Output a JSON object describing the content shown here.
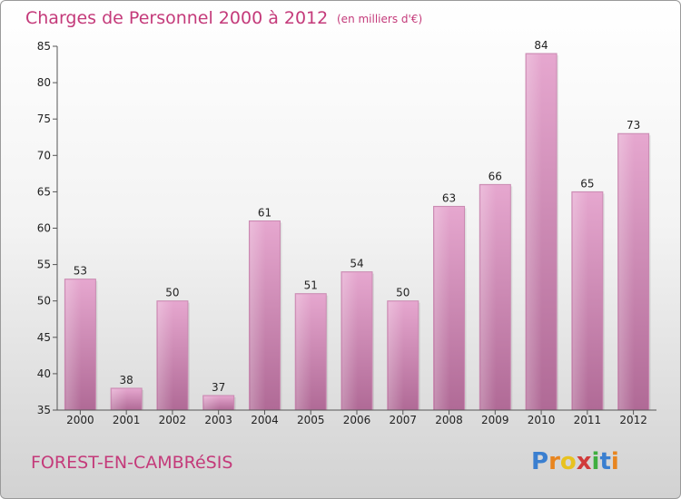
{
  "chart_data": {
    "type": "bar",
    "title": "Charges de Personnel 2000 à 2012",
    "subtitle": "(en milliers d'€)",
    "categories": [
      "2000",
      "2001",
      "2002",
      "2003",
      "2004",
      "2005",
      "2006",
      "2007",
      "2008",
      "2009",
      "2010",
      "2011",
      "2012"
    ],
    "values": [
      53,
      38,
      50,
      37,
      61,
      51,
      54,
      50,
      63,
      66,
      84,
      65,
      73
    ],
    "ylim": [
      35,
      85
    ],
    "yticks": [
      35,
      40,
      45,
      50,
      55,
      60,
      65,
      70,
      75,
      80,
      85
    ],
    "grid": false,
    "bar_color": "#d98fbb"
  },
  "footer": {
    "place": "FOREST-EN-CAMBRéSIS",
    "logo_letters": [
      "P",
      "r",
      "o",
      "x",
      "i",
      "t",
      "i"
    ],
    "logo_colors": [
      "#3a7fd0",
      "#e8851f",
      "#e8c21f",
      "#d03a3a",
      "#3fae3f",
      "#3a7fd0",
      "#e8851f"
    ]
  }
}
